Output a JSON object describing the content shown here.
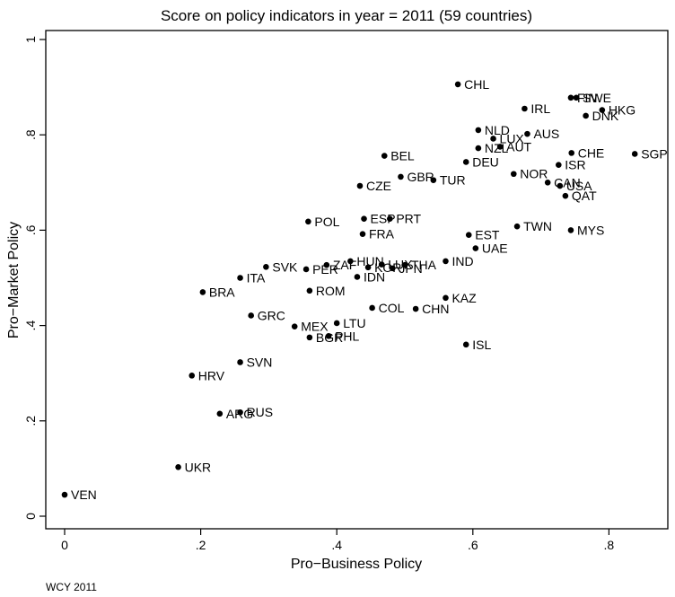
{
  "chart_data": {
    "type": "scatter",
    "title": "Score on policy indicators  in year = 2011 (59 countries)",
    "xlabel": "Pro−Business Policy",
    "ylabel": "Pro−Market Policy",
    "xlim": [
      0,
      0.85
    ],
    "ylim": [
      0,
      1
    ],
    "xticks": [
      0,
      0.2,
      0.4,
      0.6,
      0.8
    ],
    "xtick_labels": [
      "0",
      ".2",
      ".4",
      ".6",
      ".8"
    ],
    "yticks": [
      0,
      0.2,
      0.4,
      0.6,
      0.8,
      1
    ],
    "ytick_labels": [
      "0",
      ".2",
      ".4",
      ".6",
      ".8",
      "1"
    ],
    "grid": false,
    "legend": "none",
    "note": "WCY 2011",
    "points": [
      {
        "label": "VEN",
        "x": 0.0,
        "y": 0.045
      },
      {
        "label": "UKR",
        "x": 0.167,
        "y": 0.103
      },
      {
        "label": "ARG",
        "x": 0.228,
        "y": 0.215
      },
      {
        "label": "RUS",
        "x": 0.258,
        "y": 0.218
      },
      {
        "label": "HRV",
        "x": 0.187,
        "y": 0.295
      },
      {
        "label": "SVN",
        "x": 0.258,
        "y": 0.323
      },
      {
        "label": "GRC",
        "x": 0.274,
        "y": 0.421
      },
      {
        "label": "BRA",
        "x": 0.203,
        "y": 0.47
      },
      {
        "label": "ITA",
        "x": 0.258,
        "y": 0.5
      },
      {
        "label": "SVK",
        "x": 0.296,
        "y": 0.523
      },
      {
        "label": "PER",
        "x": 0.355,
        "y": 0.518
      },
      {
        "label": "ZAF",
        "x": 0.385,
        "y": 0.527
      },
      {
        "label": "HUN",
        "x": 0.42,
        "y": 0.535
      },
      {
        "label": "KOR",
        "x": 0.446,
        "y": 0.522
      },
      {
        "label": "LUX2",
        "x": 0.466,
        "y": 0.528
      },
      {
        "label": "JPN",
        "x": 0.482,
        "y": 0.52
      },
      {
        "label": "THA",
        "x": 0.5,
        "y": 0.527
      },
      {
        "label": "IDN",
        "x": 0.43,
        "y": 0.502
      },
      {
        "label": "ROM",
        "x": 0.36,
        "y": 0.473
      },
      {
        "label": "MEX",
        "x": 0.338,
        "y": 0.398
      },
      {
        "label": "LTU",
        "x": 0.4,
        "y": 0.405
      },
      {
        "label": "BGR",
        "x": 0.36,
        "y": 0.375
      },
      {
        "label": "PHL",
        "x": 0.388,
        "y": 0.378
      },
      {
        "label": "COL",
        "x": 0.452,
        "y": 0.437
      },
      {
        "label": "CHN",
        "x": 0.516,
        "y": 0.435
      },
      {
        "label": "KAZ",
        "x": 0.56,
        "y": 0.458
      },
      {
        "label": "ISL",
        "x": 0.59,
        "y": 0.36
      },
      {
        "label": "IND",
        "x": 0.56,
        "y": 0.535
      },
      {
        "label": "POL",
        "x": 0.358,
        "y": 0.618
      },
      {
        "label": "ESP",
        "x": 0.44,
        "y": 0.624
      },
      {
        "label": "PRT",
        "x": 0.478,
        "y": 0.624
      },
      {
        "label": "FRA",
        "x": 0.438,
        "y": 0.592
      },
      {
        "label": "EST",
        "x": 0.594,
        "y": 0.59
      },
      {
        "label": "UAE",
        "x": 0.604,
        "y": 0.562
      },
      {
        "label": "TWN",
        "x": 0.665,
        "y": 0.608
      },
      {
        "label": "MYS",
        "x": 0.744,
        "y": 0.6
      },
      {
        "label": "CZE",
        "x": 0.434,
        "y": 0.693
      },
      {
        "label": "GBR",
        "x": 0.494,
        "y": 0.712
      },
      {
        "label": "TUR",
        "x": 0.542,
        "y": 0.705
      },
      {
        "label": "BEL",
        "x": 0.47,
        "y": 0.756
      },
      {
        "label": "DEU",
        "x": 0.59,
        "y": 0.743
      },
      {
        "label": "NOR",
        "x": 0.66,
        "y": 0.718
      },
      {
        "label": "CAN",
        "x": 0.71,
        "y": 0.7
      },
      {
        "label": "USA",
        "x": 0.728,
        "y": 0.693
      },
      {
        "label": "QAT",
        "x": 0.736,
        "y": 0.672
      },
      {
        "label": "ISR",
        "x": 0.726,
        "y": 0.737
      },
      {
        "label": "CHE",
        "x": 0.745,
        "y": 0.762
      },
      {
        "label": "SGP",
        "x": 0.838,
        "y": 0.76
      },
      {
        "label": "NZL",
        "x": 0.608,
        "y": 0.772
      },
      {
        "label": "AUT",
        "x": 0.64,
        "y": 0.775
      },
      {
        "label": "NLD",
        "x": 0.608,
        "y": 0.81
      },
      {
        "label": "LUX",
        "x": 0.63,
        "y": 0.792
      },
      {
        "label": "AUS",
        "x": 0.68,
        "y": 0.802
      },
      {
        "label": "IRL",
        "x": 0.676,
        "y": 0.855
      },
      {
        "label": "CHL",
        "x": 0.578,
        "y": 0.906
      },
      {
        "label": "FIN",
        "x": 0.744,
        "y": 0.878
      },
      {
        "label": "SWE",
        "x": 0.752,
        "y": 0.878
      },
      {
        "label": "HKG",
        "x": 0.79,
        "y": 0.852
      },
      {
        "label": "DNK",
        "x": 0.766,
        "y": 0.84
      }
    ]
  }
}
